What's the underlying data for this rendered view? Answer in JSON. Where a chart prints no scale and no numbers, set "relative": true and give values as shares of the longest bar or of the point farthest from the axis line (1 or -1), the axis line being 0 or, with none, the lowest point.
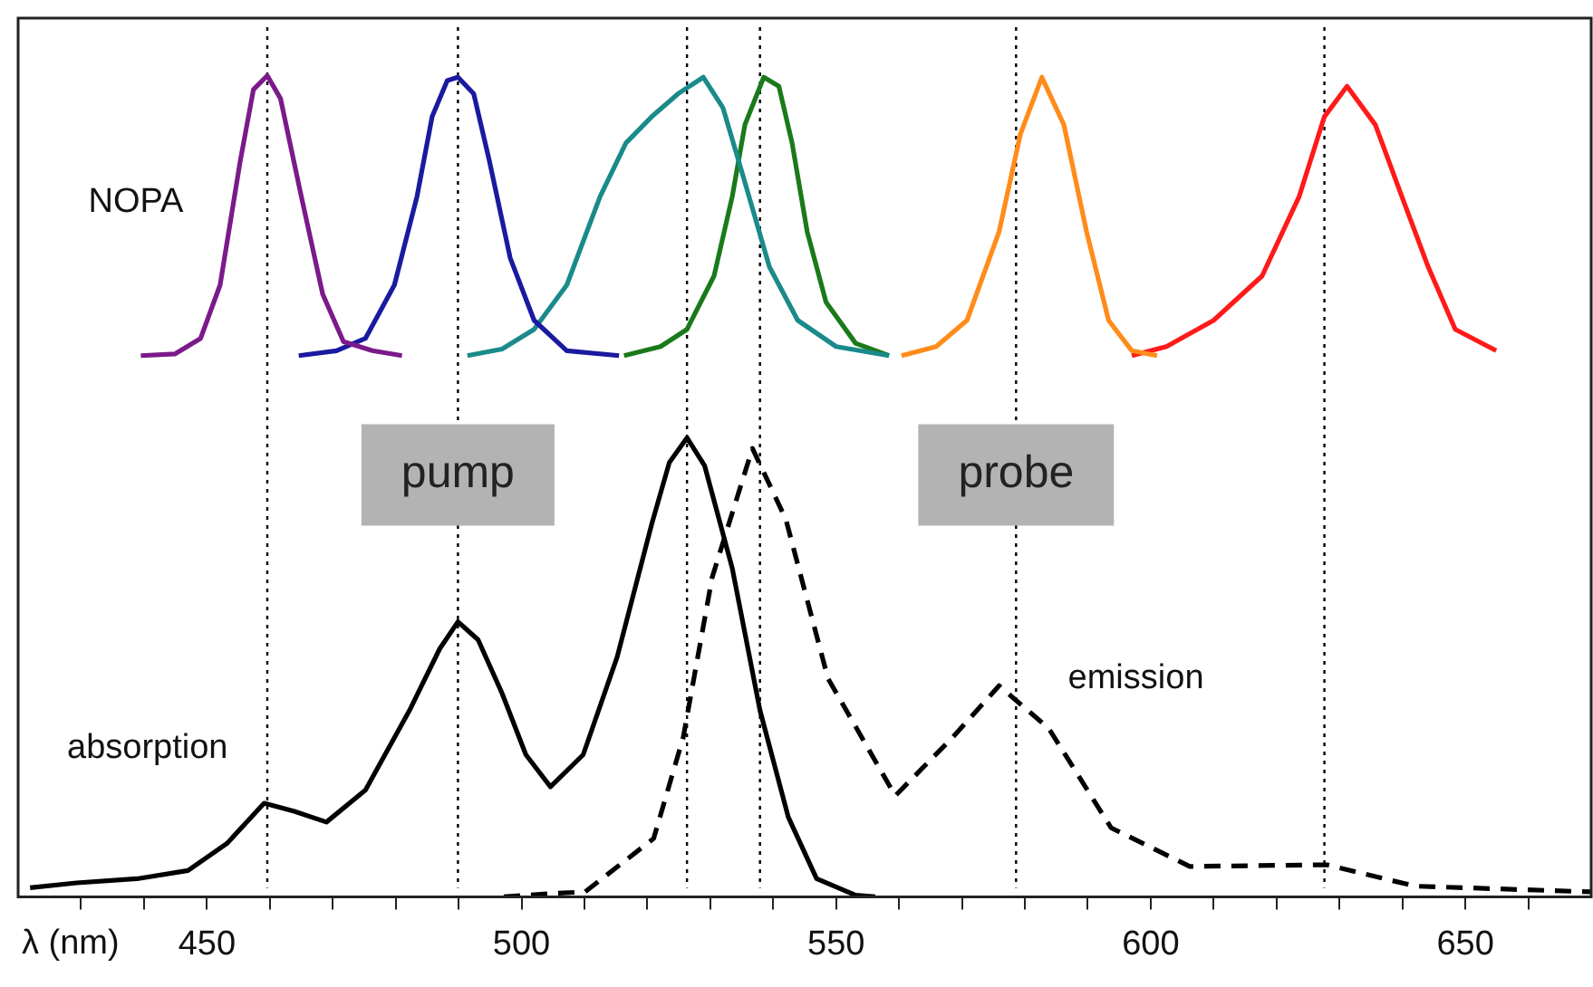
{
  "chart_data": {
    "type": "line",
    "relative": true,
    "xlabel": "λ (nm)",
    "marker": "none",
    "legend": false,
    "xlim": [
      420,
      670
    ],
    "xticks": [
      {
        "value": 430,
        "label": null
      },
      {
        "value": 440,
        "label": null
      },
      450,
      {
        "value": 460,
        "label": null
      },
      {
        "value": 470,
        "label": null
      },
      {
        "value": 480,
        "label": null
      },
      {
        "value": 490,
        "label": null
      },
      500,
      {
        "value": 510,
        "label": null
      },
      {
        "value": 520,
        "label": null
      },
      {
        "value": 530,
        "label": null
      },
      {
        "value": 540,
        "label": null
      },
      550,
      {
        "value": 560,
        "label": null
      },
      {
        "value": 570,
        "label": null
      },
      {
        "value": 580,
        "label": null
      },
      {
        "value": 590,
        "label": null
      },
      600,
      {
        "value": 610,
        "label": null
      },
      {
        "value": 620,
        "label": null
      },
      {
        "value": 630,
        "label": null
      },
      {
        "value": 640,
        "label": null
      },
      650,
      {
        "value": 660,
        "label": null
      }
    ],
    "series": [
      {
        "color": "#7b1a8a",
        "x": [
          439.5,
          444.9,
          449,
          452.1,
          455.3,
          457.4,
          459.6,
          461.7,
          465,
          468.4,
          471.7,
          476.3,
          481
        ],
        "values": [
          0.659,
          0.661,
          0.68,
          0.745,
          0.896,
          0.983,
          1,
          0.972,
          0.853,
          0.734,
          0.676,
          0.665,
          0.659
        ]
      },
      {
        "color": "#1a1aa0",
        "x": [
          464.6,
          470.6,
          475.2,
          479.8,
          483.4,
          485.8,
          488.2,
          489.9,
          492.4,
          494.9,
          498.2,
          502,
          507.2,
          515.5
        ],
        "values": [
          0.659,
          0.665,
          0.68,
          0.745,
          0.853,
          0.95,
          0.994,
          0.998,
          0.978,
          0.896,
          0.778,
          0.702,
          0.665,
          0.659
        ]
      },
      {
        "color": "#1a8a8a",
        "x": [
          491.4,
          496.9,
          502,
          507.2,
          512.5,
          516.6,
          520.7,
          524.9,
          528.9,
          532,
          534.9,
          539.4,
          543.9,
          550,
          558.4
        ],
        "values": [
          0.659,
          0.667,
          0.691,
          0.745,
          0.853,
          0.918,
          0.95,
          0.978,
          0.998,
          0.961,
          0.886,
          0.767,
          0.702,
          0.67,
          0.659
        ]
      },
      {
        "color": "#1a7a1a",
        "x": [
          516.3,
          522.1,
          526.3,
          530.6,
          533.5,
          535.5,
          538.5,
          540.9,
          543,
          545.4,
          548.4,
          553.1,
          558.4
        ],
        "values": [
          0.659,
          0.67,
          0.691,
          0.756,
          0.853,
          0.94,
          0.998,
          0.987,
          0.918,
          0.81,
          0.724,
          0.674,
          0.659
        ]
      },
      {
        "color": "#ff8c1a",
        "x": [
          560.4,
          565.9,
          570.8,
          575.9,
          579.3,
          582.7,
          586.2,
          589.8,
          593.3,
          597,
          601
        ],
        "values": [
          0.659,
          0.67,
          0.702,
          0.81,
          0.929,
          0.998,
          0.94,
          0.81,
          0.702,
          0.665,
          0.659
        ]
      },
      {
        "color": "#ff1a1a",
        "x": [
          597,
          602.5,
          610,
          617.7,
          623.6,
          627.6,
          631.2,
          635.7,
          639.9,
          644.1,
          648.4,
          654.9
        ],
        "values": [
          0.659,
          0.67,
          0.702,
          0.756,
          0.853,
          0.95,
          0.987,
          0.94,
          0.853,
          0.767,
          0.691,
          0.665
        ]
      },
      {
        "name": "absorption",
        "color": "#000000",
        "x": [
          421.9,
          429.3,
          438.9,
          447,
          453.2,
          459.1,
          463.9,
          469,
          475.2,
          482.2,
          487,
          489.9,
          493.1,
          496.9,
          500.7,
          504.6,
          509.8,
          515.2,
          520.7,
          523.5,
          526.3,
          529.1,
          533.5,
          537.9,
          542.4,
          546.9,
          553.1,
          556.2
        ],
        "values": [
          0.011,
          0.017,
          0.022,
          0.032,
          0.065,
          0.114,
          0.104,
          0.091,
          0.13,
          0.227,
          0.302,
          0.335,
          0.313,
          0.248,
          0.173,
          0.134,
          0.173,
          0.292,
          0.454,
          0.529,
          0.559,
          0.525,
          0.4,
          0.227,
          0.097,
          0.022,
          0.002,
          0
        ]
      },
      {
        "name": "emission",
        "color": "#000000",
        "line_style": "dashed",
        "x": [
          497.2,
          504.6,
          510.1,
          521,
          525.7,
          530.3,
          536.7,
          542,
          548.7,
          559.4,
          568.5,
          575.9,
          583.8,
          593.7,
          606.2,
          628,
          642,
          670
        ],
        "values": [
          0,
          0.004,
          0.006,
          0.071,
          0.194,
          0.389,
          0.546,
          0.46,
          0.266,
          0.123,
          0.194,
          0.257,
          0.205,
          0.084,
          0.037,
          0.039,
          0.013,
          0.006
        ]
      }
    ],
    "ref_lines": [
      {
        "axis": "x",
        "value": 459.6,
        "line_style": "dotted",
        "color": "#000000"
      },
      {
        "axis": "x",
        "value": 489.9,
        "line_style": "dotted",
        "color": "#000000",
        "label": "pump"
      },
      {
        "axis": "x",
        "value": 526.3,
        "line_style": "dotted",
        "color": "#000000"
      },
      {
        "axis": "x",
        "value": 537.9,
        "line_style": "dotted",
        "color": "#000000"
      },
      {
        "axis": "x",
        "value": 578.6,
        "line_style": "dotted",
        "color": "#000000",
        "label": "probe"
      },
      {
        "axis": "x",
        "value": 627.6,
        "line_style": "dotted",
        "color": "#000000"
      }
    ],
    "annotations": [
      "NOPA"
    ]
  }
}
